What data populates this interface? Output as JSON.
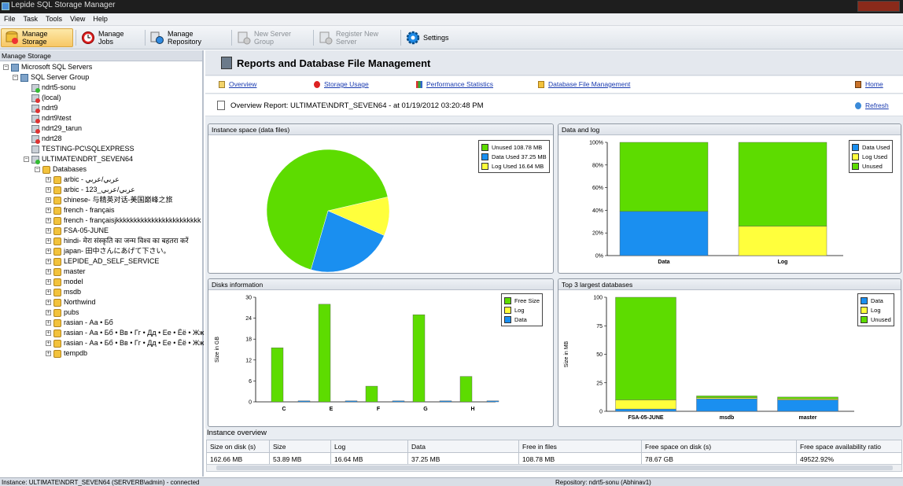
{
  "window": {
    "title": "Lepide SQL Storage Manager"
  },
  "menu": [
    "File",
    "Task",
    "Tools",
    "View",
    "Help"
  ],
  "toolbar": {
    "manage_storage": "Manage Storage",
    "manage_jobs": "Manage Jobs",
    "manage_repository": "Manage Repository",
    "new_server_group": "New Server Group",
    "register_new_server": "Register New Server",
    "settings": "Settings"
  },
  "tree": {
    "header": "Manage Storage",
    "root": "Microsoft SQL Servers",
    "group": "SQL Server Group",
    "servers": [
      "ndrt5-sonu",
      "(local)",
      "ndrt9",
      "ndrt9\\test",
      "ndrt29_tarun",
      "ndrt28",
      "TESTING-PC\\SQLEXPRESS",
      "ULTIMATE\\NDRT_SEVEN64"
    ],
    "databases_label": "Databases",
    "databases": [
      "arbic - عربي/عربي",
      "arbic - 123_عربي/عربي",
      "chinese-      与精英对话-美国巅峰之旅",
      "french - français",
      "french - françaisjkkkkkkkkkkkkkkkkkkkkkkkk",
      "FSA-05-JUNE",
      "hindi-     मेरा संस्कृति का जन्म विश्व का बहतरा करें",
      "japan- 田中さんにあげて下さい。",
      "LEPIDE_AD_SELF_SERVICE",
      "master",
      "model",
      "msdb",
      "Northwind",
      "pubs",
      "rasian - Аа • Бб",
      "rasian - Аа • Бб • Вв • Гг • Дд • Ее • Ёё • Жж •",
      "rasian - Аа • Бб • Вв • Гг • Дд • Ее • Ёё • Жж •",
      "tempdb"
    ]
  },
  "report": {
    "title": "Reports and Database File Management",
    "nav": {
      "overview": "Overview",
      "storage_usage": "Storage Usage",
      "performance_statistics": "Performance Statistics",
      "database_file_management": "Database File Management",
      "home": "Home",
      "refresh": "Refresh"
    },
    "overview_line": "Overview Report: ULTIMATE\\NDRT_SEVEN64 - at 01/19/2012 03:20:48 PM"
  },
  "panels": {
    "instance_space": "Instance space (data files)",
    "data_and_log": "Data and log",
    "disks_information": "Disks information",
    "top3": "Top 3 largest databases"
  },
  "colors": {
    "green": "#5ddc00",
    "blue": "#1a8ff0",
    "yellow": "#ffff3c"
  },
  "chart_data": [
    {
      "type": "pie",
      "title": "Instance space (data files)",
      "slices": [
        {
          "label": "Unused 108.78 MB",
          "value": 108.78,
          "color": "#5ddc00"
        },
        {
          "label": "Data Used 37.25 MB",
          "value": 37.25,
          "color": "#1a8ff0"
        },
        {
          "label": "Log Used 16.64 MB",
          "value": 16.64,
          "color": "#ffff3c"
        }
      ]
    },
    {
      "type": "bar",
      "stacked": true,
      "title": "Data and log",
      "categories": [
        "Data",
        "Log"
      ],
      "yticks": [
        "0%",
        "20%",
        "40%",
        "60%",
        "80%",
        "100%"
      ],
      "ylim": [
        0,
        100
      ],
      "series": [
        {
          "name": "Data Used",
          "values": [
            39,
            0
          ],
          "color": "#1a8ff0"
        },
        {
          "name": "Log Used",
          "values": [
            0,
            26
          ],
          "color": "#ffff3c"
        },
        {
          "name": "Unused",
          "values": [
            61,
            74
          ],
          "color": "#5ddc00"
        }
      ],
      "legend": "top-right"
    },
    {
      "type": "bar",
      "title": "Disks information",
      "ylabel": "Size in GB",
      "categories": [
        "C",
        "E",
        "F",
        "G",
        "H"
      ],
      "yticks": [
        "0",
        "6",
        "12",
        "18",
        "24",
        "30"
      ],
      "ylim": [
        0,
        30
      ],
      "series": [
        {
          "name": "Free Size",
          "values": [
            15.5,
            28,
            4.5,
            25,
            7.3
          ],
          "color": "#5ddc00"
        },
        {
          "name": "Log",
          "values": [
            0,
            0,
            0,
            0,
            0
          ],
          "color": "#ffff3c"
        },
        {
          "name": "Data",
          "values": [
            0.3,
            0.3,
            0.3,
            0.3,
            0.3
          ],
          "color": "#1a8ff0"
        }
      ],
      "legend": "top-right"
    },
    {
      "type": "bar",
      "stacked": true,
      "title": "Top 3 largest databases",
      "ylabel": "Size in MB",
      "categories": [
        "FSA-05-JUNE",
        "msdb",
        "master"
      ],
      "yticks": [
        "0",
        "25",
        "50",
        "75",
        "100"
      ],
      "ylim": [
        0,
        100
      ],
      "series": [
        {
          "name": "Data",
          "values": [
            2,
            11,
            10
          ],
          "color": "#1a8ff0"
        },
        {
          "name": "Log",
          "values": [
            8,
            1,
            1
          ],
          "color": "#ffff3c"
        },
        {
          "name": "Unused",
          "values": [
            90,
            1.5,
            1.5
          ],
          "color": "#5ddc00"
        }
      ],
      "legend": "top-right"
    }
  ],
  "instance_overview": {
    "caption": "Instance overview",
    "columns": [
      "Size on disk (s)",
      "Size",
      "Log",
      "Data",
      "Free in files",
      "Free space on disk (s)",
      "Free space availability ratio"
    ],
    "row": [
      "162.66 MB",
      "53.89 MB",
      "16.64 MB",
      "37.25 MB",
      "108.78 MB",
      "78.67 GB",
      "49522.92%"
    ]
  },
  "status": {
    "left": "Instance: ULTIMATE\\NDRT_SEVEN64 (SERVERB\\admin) - connected",
    "right": "Repository: ndrt5-sonu (Abhinav1)"
  }
}
